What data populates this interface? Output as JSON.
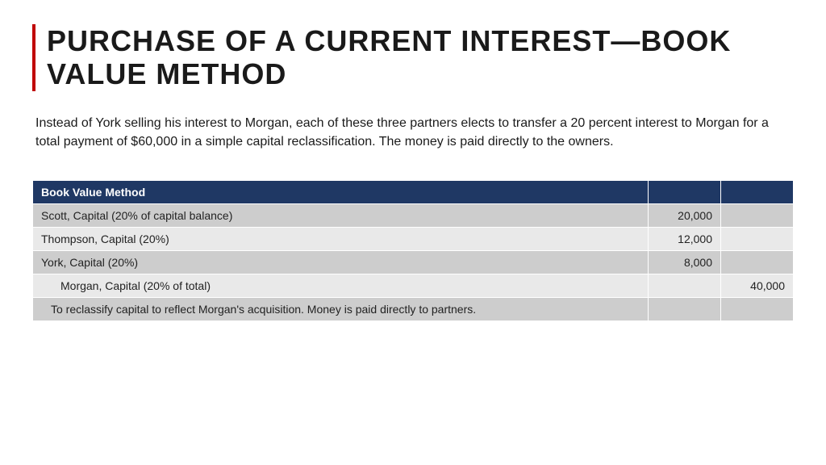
{
  "title": "PURCHASE OF A CURRENT INTEREST—BOOK VALUE METHOD",
  "accent_color": "#c00000",
  "body": "Instead of York selling his interest to Morgan, each of these three partners elects to transfer a 20 percent interest to Morgan for a total payment of $60,000 in a simple capital reclassification. The money is paid directly to the owners.",
  "table": {
    "header_bg": "#1f3864",
    "header_fg": "#ffffff",
    "row_odd_bg": "#cdcdcd",
    "row_even_bg": "#e9e9e9",
    "header": "Book Value Method",
    "rows": [
      {
        "label": "Scott, Capital (20% of capital balance)",
        "col1": "20,000",
        "col2": "",
        "indent": 0
      },
      {
        "label": "Thompson, Capital (20%)",
        "col1": "12,000",
        "col2": "",
        "indent": 0
      },
      {
        "label": "York, Capital (20%)",
        "col1": "8,000",
        "col2": "",
        "indent": 0
      },
      {
        "label": "Morgan, Capital (20% of total)",
        "col1": "",
        "col2": "40,000",
        "indent": 1
      },
      {
        "label": "To reclassify capital to reflect Morgan's acquisition. Money is paid directly to partners.",
        "col1": "",
        "col2": "",
        "indent": 2
      }
    ]
  }
}
